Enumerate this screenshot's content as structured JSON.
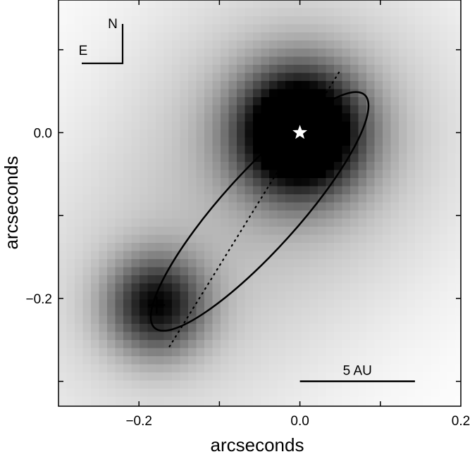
{
  "chart_data": {
    "type": "heatmap",
    "title": "",
    "xlabel": "arcseconds",
    "ylabel": "arcseconds",
    "xlim": [
      -0.3,
      0.2
    ],
    "ylim": [
      -0.33,
      0.16
    ],
    "xticks": [
      -0.2,
      0.0,
      0.2
    ],
    "xtick_labels": [
      "−0.2",
      "0.0",
      "0.2"
    ],
    "yticks": [
      0.0,
      -0.2
    ],
    "ytick_labels": [
      "0.0",
      "−0.2"
    ],
    "colormap": "inverted grayscale (dark = bright)",
    "grid": false,
    "sources": [
      {
        "name": "primary",
        "x": 0.0,
        "y": 0.0,
        "marker": "star",
        "marker_color": "#ffffff",
        "peak": 1.0
      },
      {
        "name": "companion",
        "x": -0.178,
        "y": -0.208,
        "marker": "plus",
        "marker_color": "#000000",
        "peak": 0.55
      }
    ],
    "orbit": {
      "center": [
        -0.05,
        -0.095
      ],
      "semi_major": 0.195,
      "semi_minor": 0.048,
      "angle_deg": 48,
      "line_style": "solid"
    },
    "major_axis_line": {
      "from": [
        -0.162,
        -0.258
      ],
      "to": [
        0.05,
        0.075
      ],
      "line_style": "dotted"
    },
    "compass": {
      "labels": [
        "N",
        "E"
      ],
      "position": "top-left"
    },
    "scale_bar": {
      "label": "5 AU",
      "from_x": 0.0,
      "to_x": 0.143,
      "y": -0.3
    }
  }
}
